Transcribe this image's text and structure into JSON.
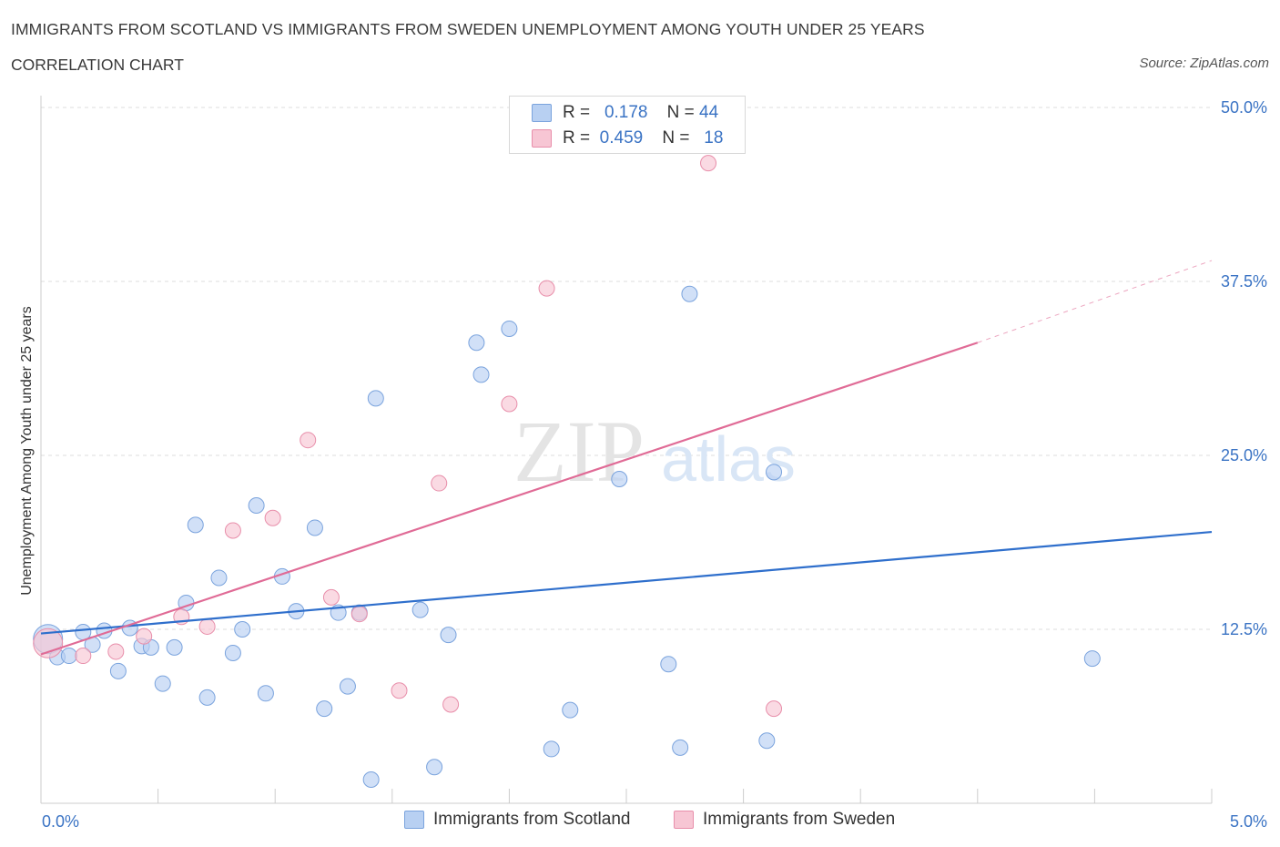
{
  "header": {
    "title": "IMMIGRANTS FROM SCOTLAND VS IMMIGRANTS FROM SWEDEN UNEMPLOYMENT AMONG YOUTH UNDER 25 YEARS",
    "subtitle": "CORRELATION CHART",
    "source": "Source: ZipAtlas.com"
  },
  "watermark": {
    "zip": "ZIP",
    "atlas": "atlas"
  },
  "legend": {
    "rows": [
      {
        "r_label": "R =",
        "r_value": "0.178",
        "n_label": "N =",
        "n_value": "44"
      },
      {
        "r_label": "R =",
        "r_value": "0.459",
        "n_label": "N =",
        "n_value": "18"
      }
    ]
  },
  "colors": {
    "scotland_fill": "#b8d0f2",
    "scotland_stroke": "#7aa3dd",
    "scotland_line": "#2f6fcc",
    "sweden_fill": "#f7c6d4",
    "sweden_stroke": "#e88eaa",
    "sweden_line": "#e06b96",
    "axis_text": "#3a73c4",
    "grid": "#dddddd"
  },
  "chart_data": {
    "type": "scatter",
    "title": "IMMIGRANTS FROM SCOTLAND VS IMMIGRANTS FROM SWEDEN UNEMPLOYMENT AMONG YOUTH UNDER 25 YEARS",
    "subtitle": "CORRELATION CHART",
    "xlabel": "",
    "ylabel": "Unemployment Among Youth under 25 years",
    "xlim": [
      0,
      5
    ],
    "ylim": [
      0,
      50
    ],
    "x_tick_labels": [
      "0.0%",
      "5.0%"
    ],
    "y_ticks": [
      12.5,
      25,
      37.5,
      50
    ],
    "y_tick_labels": [
      "12.5%",
      "25.0%",
      "37.5%",
      "50.0%"
    ],
    "grid": true,
    "legend_position": "top-center",
    "series": [
      {
        "name": "Immigrants from Scotland",
        "R": 0.178,
        "N": 44,
        "trend": {
          "x": [
            0.0,
            5.0
          ],
          "y": [
            12.2,
            19.5
          ],
          "dashed_to": null
        },
        "points": [
          [
            0.03,
            11.8,
            "big"
          ],
          [
            0.07,
            10.5
          ],
          [
            0.12,
            10.6
          ],
          [
            0.18,
            12.3
          ],
          [
            0.22,
            11.4
          ],
          [
            0.27,
            12.4
          ],
          [
            0.33,
            9.5
          ],
          [
            0.38,
            12.6
          ],
          [
            0.43,
            11.3
          ],
          [
            0.47,
            11.2
          ],
          [
            0.52,
            8.6
          ],
          [
            0.57,
            11.2
          ],
          [
            0.62,
            14.4
          ],
          [
            0.66,
            20.0
          ],
          [
            0.71,
            7.6
          ],
          [
            0.76,
            16.2
          ],
          [
            0.82,
            10.8
          ],
          [
            0.86,
            12.5
          ],
          [
            0.92,
            21.4
          ],
          [
            0.96,
            7.9
          ],
          [
            1.03,
            16.3
          ],
          [
            1.09,
            13.8
          ],
          [
            1.17,
            19.8
          ],
          [
            1.21,
            6.8
          ],
          [
            1.27,
            13.7
          ],
          [
            1.31,
            8.4
          ],
          [
            1.36,
            13.7
          ],
          [
            1.41,
            1.7
          ],
          [
            1.43,
            29.1
          ],
          [
            1.62,
            13.9
          ],
          [
            1.68,
            2.6
          ],
          [
            1.74,
            12.1
          ],
          [
            1.86,
            33.1
          ],
          [
            1.88,
            30.8
          ],
          [
            2.0,
            34.1
          ],
          [
            2.18,
            3.9
          ],
          [
            2.26,
            6.7
          ],
          [
            2.47,
            23.3
          ],
          [
            2.68,
            10.0
          ],
          [
            2.73,
            4.0
          ],
          [
            2.77,
            36.6
          ],
          [
            3.1,
            4.5
          ],
          [
            3.13,
            23.8
          ],
          [
            4.49,
            10.4
          ]
        ]
      },
      {
        "name": "Immigrants from Sweden",
        "R": 0.459,
        "N": 18,
        "trend": {
          "x": [
            0.0,
            4.0
          ],
          "y": [
            10.7,
            33.1
          ],
          "dashed_to": [
            5.0,
            39.0
          ]
        },
        "points": [
          [
            0.03,
            11.5,
            "big"
          ],
          [
            0.18,
            10.6
          ],
          [
            0.32,
            10.9
          ],
          [
            0.44,
            12.0
          ],
          [
            0.6,
            13.4
          ],
          [
            0.71,
            12.7
          ],
          [
            0.82,
            19.6
          ],
          [
            0.99,
            20.5
          ],
          [
            1.14,
            26.1
          ],
          [
            1.24,
            14.8
          ],
          [
            1.36,
            13.6
          ],
          [
            1.53,
            8.1
          ],
          [
            1.7,
            23.0
          ],
          [
            1.75,
            7.1
          ],
          [
            2.0,
            28.7
          ],
          [
            2.16,
            37.0
          ],
          [
            2.85,
            46.0
          ],
          [
            3.13,
            6.8
          ]
        ]
      }
    ]
  }
}
